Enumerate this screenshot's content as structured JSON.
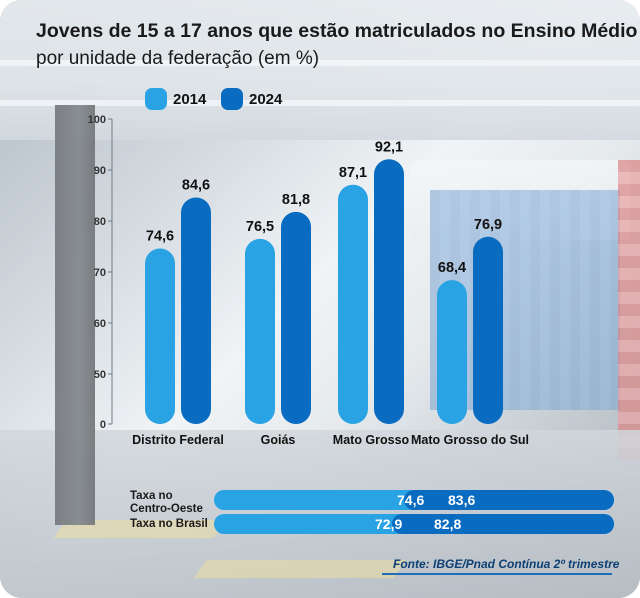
{
  "title": "Jovens de 15 a 17 anos que estão matriculados no Ensino Médio",
  "subtitle": "por unidade da federação (em %)",
  "colors": {
    "y2014": "#29a3e3",
    "y2024": "#0a6cc1"
  },
  "chart_data": {
    "type": "bar",
    "categories": [
      "Distrito Federal",
      "Goiás",
      "Mato Grosso",
      "Mato Grosso do Sul"
    ],
    "series": [
      {
        "name": "2014",
        "values": [
          74.6,
          76.5,
          87.1,
          68.4
        ],
        "labels": [
          "74,6",
          "76,5",
          "87,1",
          "68,4"
        ]
      },
      {
        "name": "2024",
        "values": [
          84.6,
          81.8,
          92.1,
          76.9
        ],
        "labels": [
          "84,6",
          "81,8",
          "92,1",
          "76,9"
        ]
      }
    ],
    "ylim": [
      0,
      100
    ],
    "yticks": [
      0,
      50,
      60,
      70,
      80,
      90,
      100
    ],
    "ytick_labels": [
      "0",
      "50",
      "60",
      "70",
      "80",
      "90",
      "100"
    ],
    "legend": [
      "2014",
      "2024"
    ],
    "legend_position": "top"
  },
  "summary": {
    "rows": [
      {
        "label": [
          "Taxa no",
          "Centro-Oeste"
        ],
        "v2014": "74,6",
        "v2024": "83,6",
        "value2014": 74.6,
        "value2024": 83.6
      },
      {
        "label": [
          "Taxa no Brasil"
        ],
        "v2014": "72,9",
        "v2024": "82,8",
        "value2014": 72.9,
        "value2024": 82.8
      }
    ]
  },
  "source": "Fonte: IBGE/Pnad Contínua 2º trimestre"
}
